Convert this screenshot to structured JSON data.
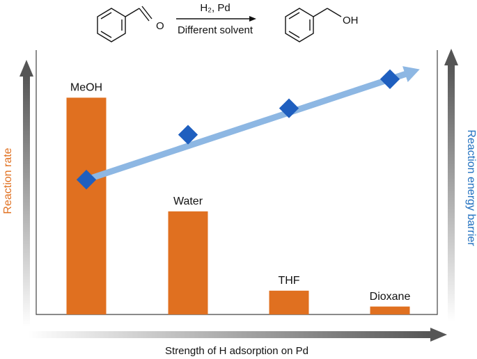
{
  "reaction": {
    "reagents": "H₂, Pd",
    "conditions": "Different solvent",
    "reactant_atom": "O",
    "product_group": "OH"
  },
  "chart_data": {
    "type": "bar",
    "xlabel": "Strength of H adsorption on Pd",
    "ylabel": "Reaction rate",
    "y2label": "Reaction energy barrier",
    "categories": [
      "MeOH",
      "Water",
      "THF",
      "Dioxane"
    ],
    "series": [
      {
        "color": "#e07020",
        "values": [
          82,
          39,
          9,
          3
        ]
      },
      {
        "color": "#1f5fbf",
        "values": [
          51,
          68,
          78,
          89
        ],
        "axis": "y2"
      }
    ],
    "ylim": [
      0,
      100
    ],
    "y2lim": [
      0,
      100
    ]
  }
}
